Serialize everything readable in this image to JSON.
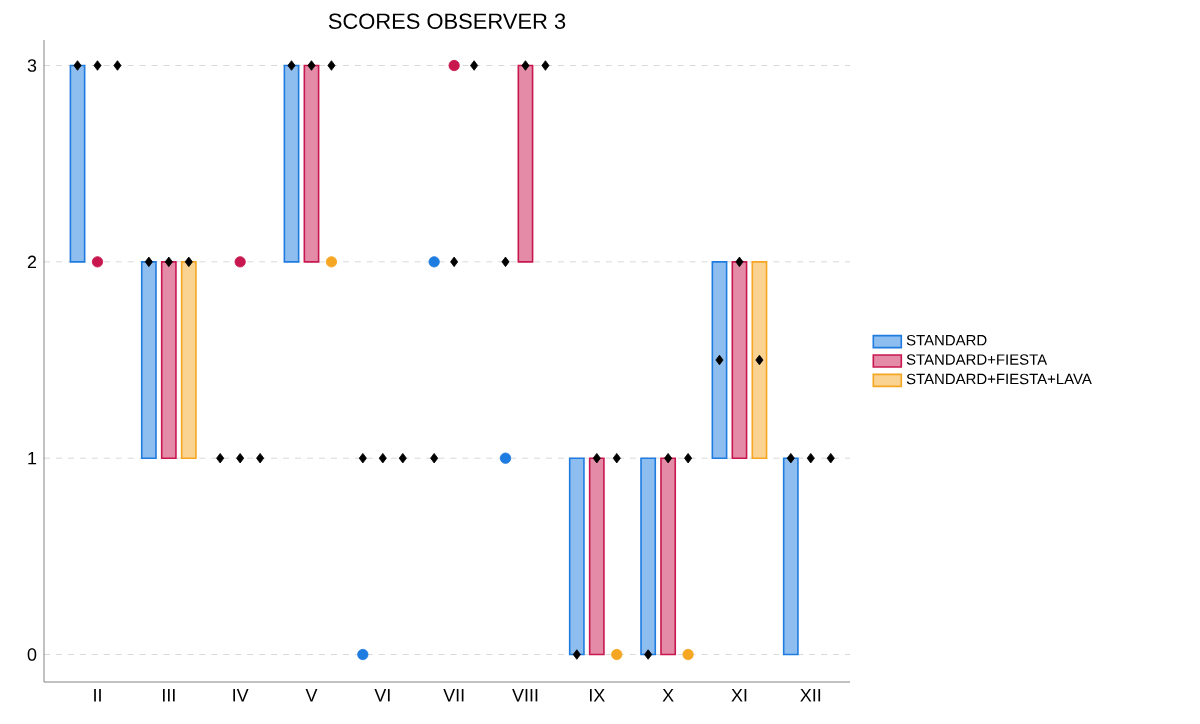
{
  "chart_data": {
    "type": "bar",
    "title": "SCORES OBSERVER 3",
    "categories": [
      "II",
      "III",
      "IV",
      "V",
      "VI",
      "VII",
      "VIII",
      "IX",
      "X",
      "XI",
      "XII"
    ],
    "ylim": [
      -0.14,
      3.13
    ],
    "yticks": [
      0,
      1,
      2,
      3
    ],
    "grid": "y",
    "legend": "right",
    "series": [
      {
        "name": "STANDARD",
        "color": "#1e7be0",
        "base": [
          2,
          1,
          null,
          2,
          null,
          null,
          null,
          0,
          0,
          1,
          0
        ],
        "values": [
          1,
          1,
          null,
          1,
          null,
          null,
          null,
          1,
          1,
          1,
          1
        ]
      },
      {
        "name": "STANDARD+FIESTA",
        "color": "#c8174f",
        "base": [
          null,
          1,
          null,
          2,
          null,
          null,
          2,
          0,
          0,
          1,
          null
        ],
        "values": [
          null,
          1,
          null,
          1,
          null,
          null,
          1,
          1,
          1,
          1,
          null
        ]
      },
      {
        "name": "STANDARD+FIESTA+LAVA",
        "color": "#f5a623",
        "base": [
          null,
          1,
          null,
          null,
          null,
          null,
          null,
          null,
          null,
          1,
          null
        ],
        "values": [
          null,
          1,
          null,
          null,
          null,
          null,
          null,
          null,
          null,
          1,
          null
        ]
      },
      {
        "type": "scatter",
        "marker": "circle",
        "color": "#1e7be0",
        "values": [
          null,
          null,
          null,
          null,
          0,
          2,
          1,
          null,
          null,
          null,
          null
        ]
      },
      {
        "type": "scatter",
        "marker": "circle",
        "color": "#c8174f",
        "values": [
          2,
          null,
          2,
          null,
          null,
          3,
          null,
          null,
          null,
          null,
          null
        ]
      },
      {
        "type": "scatter",
        "marker": "circle",
        "color": "#f5a623",
        "values": [
          null,
          null,
          null,
          2,
          null,
          null,
          null,
          0,
          0,
          null,
          null
        ]
      },
      {
        "type": "scatter",
        "marker": "diamond",
        "color": "#000000",
        "values": [
          3,
          2,
          1,
          3,
          1,
          1,
          2,
          0,
          0,
          1.5,
          1
        ]
      },
      {
        "type": "scatter",
        "marker": "diamond",
        "color": "#000000",
        "values": [
          3,
          2,
          1,
          3,
          1,
          2,
          3,
          1,
          1,
          2,
          1
        ]
      },
      {
        "type": "scatter",
        "marker": "diamond",
        "color": "#000000",
        "values": [
          3,
          2,
          1,
          3,
          1,
          3,
          3,
          1,
          1,
          1.5,
          1
        ]
      }
    ]
  }
}
